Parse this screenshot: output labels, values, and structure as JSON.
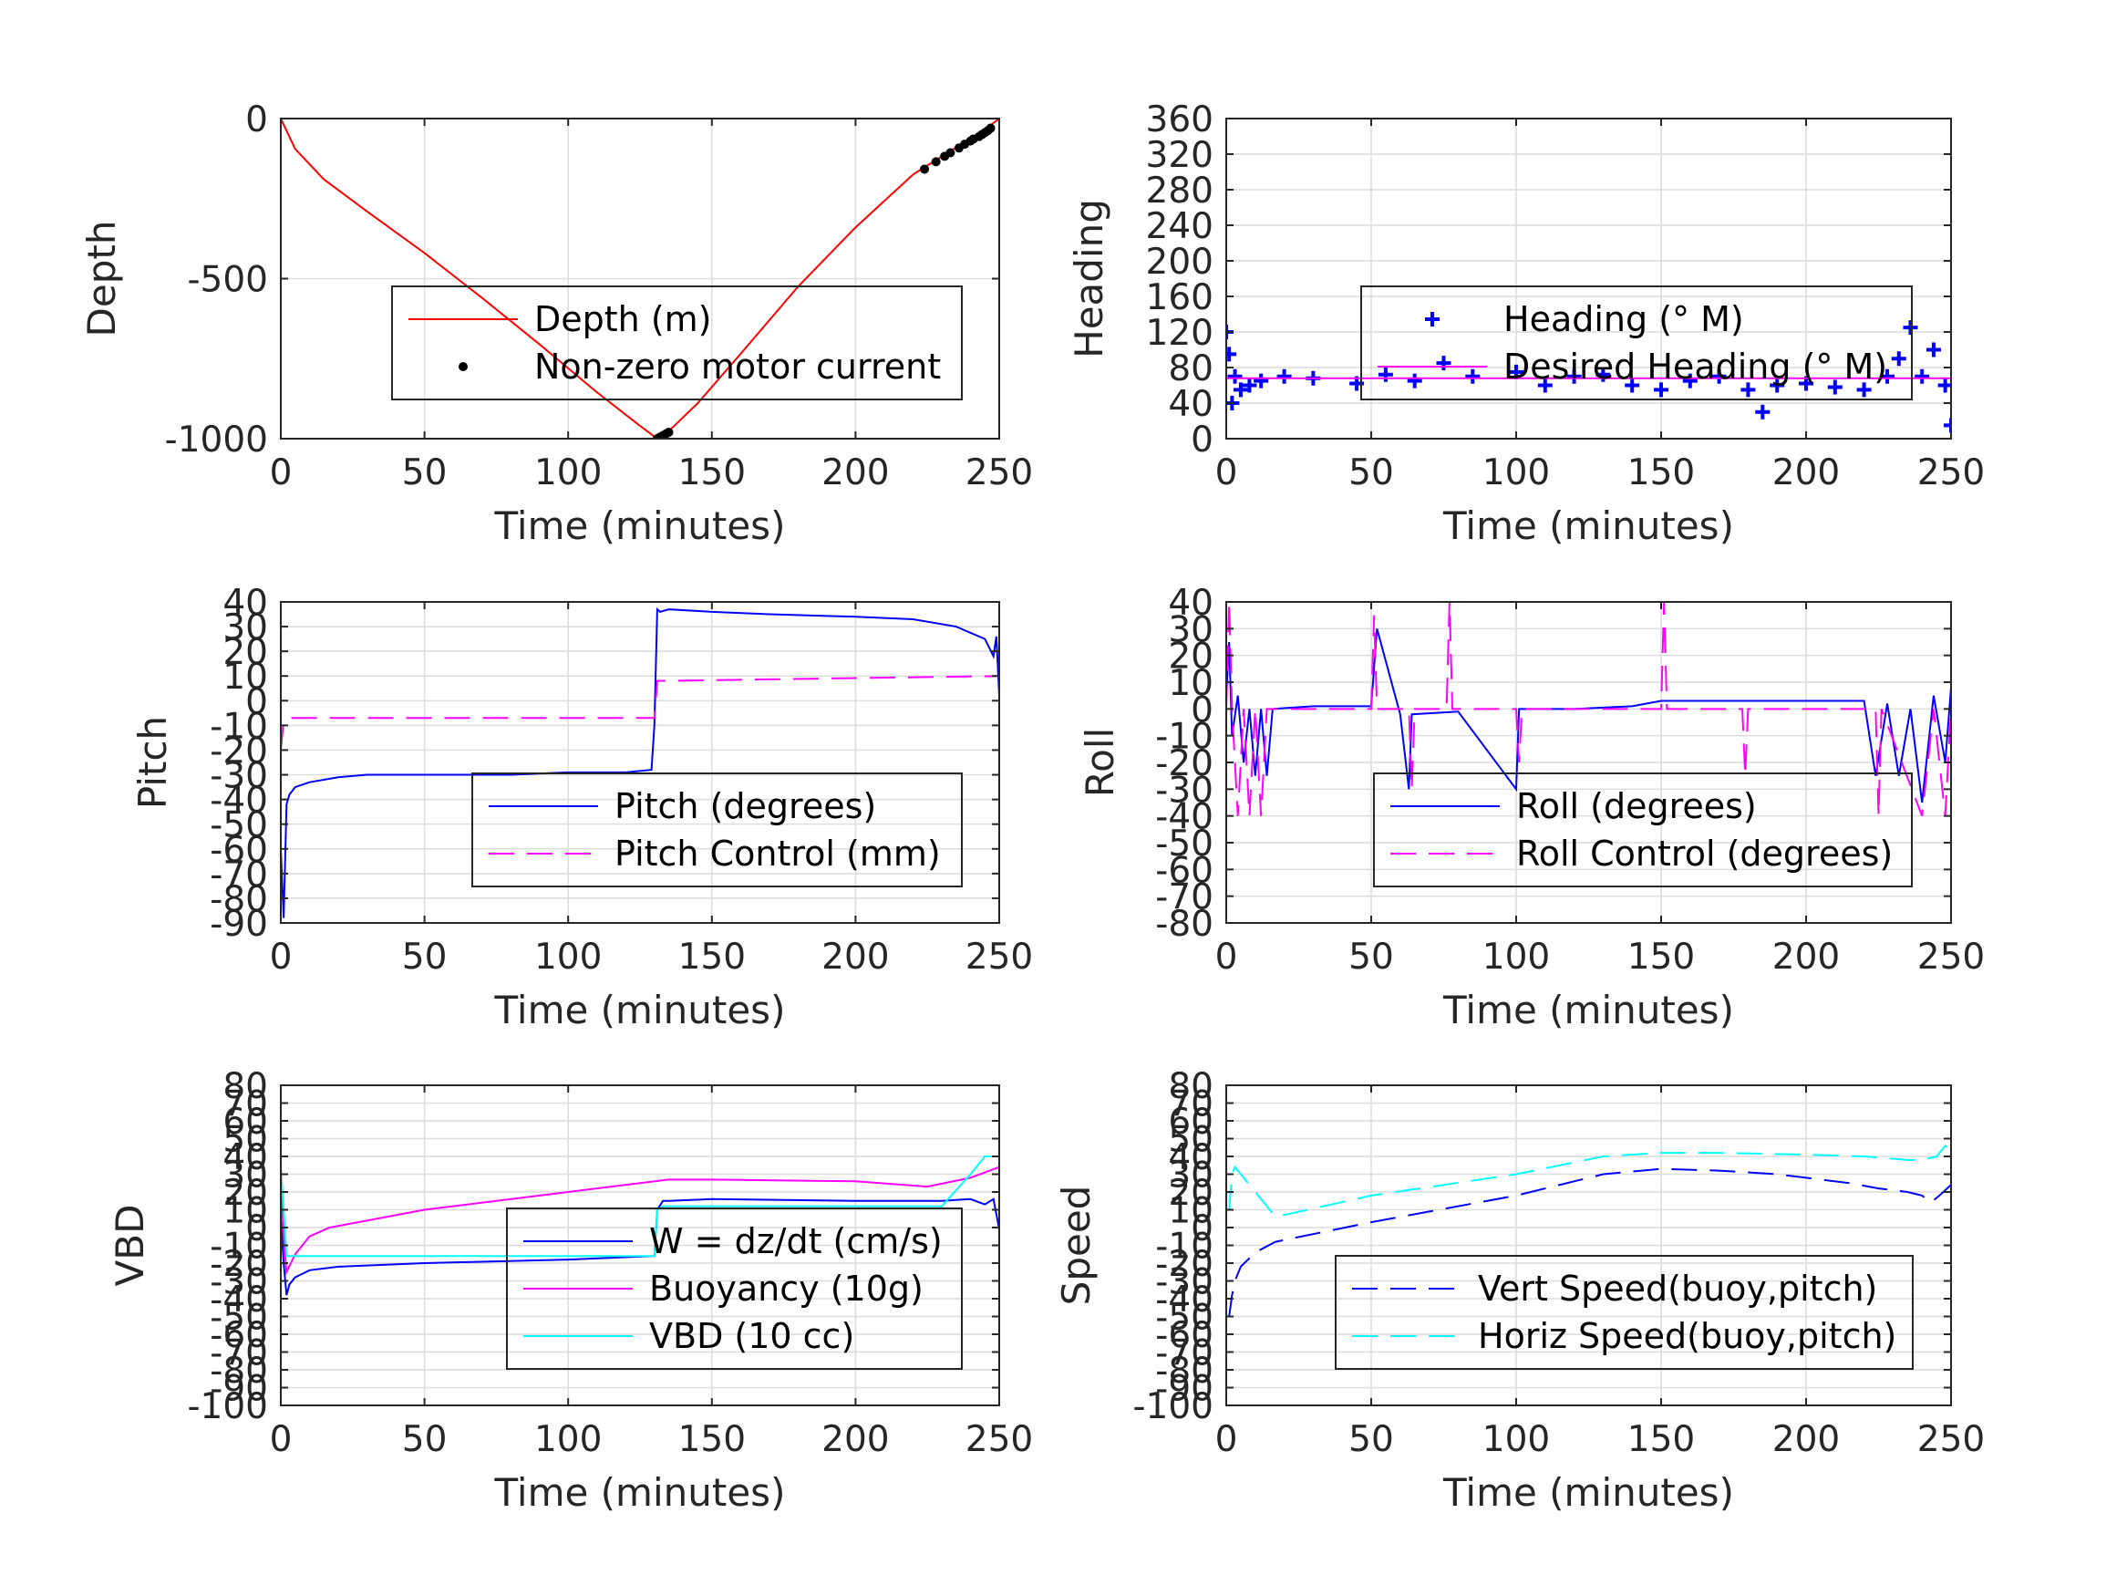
{
  "chart_data": [
    {
      "type": "line",
      "xlabel": "Time (minutes)",
      "ylabel": "Depth",
      "xlim": [
        0,
        250
      ],
      "ylim": [
        -1000,
        0
      ],
      "xticks": [
        0,
        50,
        100,
        150,
        200,
        250
      ],
      "yticks": [
        -1000,
        -500,
        0
      ],
      "grid": true,
      "legend_position": "lower-right",
      "series": [
        {
          "name": "Depth (m)",
          "color": "#ff0000",
          "style": "solid",
          "x": [
            0,
            5,
            15,
            30,
            50,
            70,
            90,
            110,
            125,
            131,
            134,
            145,
            160,
            180,
            200,
            220,
            235,
            245,
            250
          ],
          "y": [
            0,
            -95,
            -190,
            -290,
            -420,
            -560,
            -705,
            -855,
            -960,
            -1000,
            -985,
            -890,
            -735,
            -525,
            -340,
            -175,
            -90,
            -35,
            0
          ]
        },
        {
          "name": "Non-zero motor current",
          "color": "#000000",
          "style": "markers-dot",
          "x": [
            131,
            132,
            133,
            134,
            135,
            224,
            228,
            231,
            233,
            236,
            238,
            240,
            241,
            243,
            244,
            245,
            246,
            247
          ],
          "y": [
            -1000,
            -995,
            -990,
            -985,
            -980,
            -158,
            -135,
            -118,
            -107,
            -92,
            -80,
            -70,
            -64,
            -56,
            -50,
            -44,
            -38,
            -30
          ]
        }
      ]
    },
    {
      "type": "scatter",
      "xlabel": "Time (minutes)",
      "ylabel": "Heading",
      "xlim": [
        0,
        250
      ],
      "ylim": [
        0,
        360
      ],
      "xticks": [
        0,
        50,
        100,
        150,
        200,
        250
      ],
      "yticks": [
        0,
        40,
        80,
        120,
        160,
        200,
        240,
        280,
        320,
        360
      ],
      "grid": true,
      "legend_position": "center-right",
      "series": [
        {
          "name": "Heading (° M)",
          "color": "#0000ff",
          "style": "markers-plus",
          "x": [
            0,
            1,
            2,
            3,
            5,
            8,
            12,
            20,
            30,
            45,
            55,
            65,
            75,
            85,
            100,
            110,
            120,
            130,
            140,
            150,
            160,
            170,
            180,
            185,
            190,
            200,
            210,
            220,
            228,
            232,
            236,
            240,
            244,
            248,
            250
          ],
          "y": [
            120,
            95,
            40,
            70,
            55,
            60,
            65,
            70,
            68,
            62,
            72,
            65,
            85,
            70,
            75,
            60,
            70,
            72,
            60,
            55,
            65,
            70,
            55,
            30,
            60,
            62,
            58,
            55,
            70,
            90,
            125,
            70,
            100,
            60,
            15
          ]
        },
        {
          "name": "Desired Heading (° M)",
          "color": "#ff00ff",
          "style": "solid",
          "x": [
            0,
            250
          ],
          "y": [
            68,
            68
          ]
        }
      ]
    },
    {
      "type": "line",
      "xlabel": "Time (minutes)",
      "ylabel": "Pitch",
      "xlim": [
        0,
        250
      ],
      "ylim": [
        -90,
        40
      ],
      "xticks": [
        0,
        50,
        100,
        150,
        200,
        250
      ],
      "yticks": [
        -90,
        -80,
        -70,
        -60,
        -50,
        -40,
        -30,
        -20,
        -10,
        0,
        10,
        20,
        30,
        40
      ],
      "grid": true,
      "legend_position": "lower-right",
      "series": [
        {
          "name": "Pitch (degrees)",
          "color": "#0000ff",
          "style": "solid",
          "x": [
            0,
            1,
            2,
            3,
            5,
            10,
            20,
            30,
            50,
            80,
            100,
            120,
            129,
            130,
            131,
            132,
            135,
            150,
            170,
            200,
            220,
            235,
            245,
            248,
            249,
            250
          ],
          "y": [
            -60,
            -88,
            -42,
            -38,
            -35,
            -33,
            -31,
            -30,
            -30,
            -30,
            -29,
            -29,
            -28,
            -10,
            37,
            36,
            37,
            36,
            35,
            34,
            33,
            30,
            25,
            18,
            26,
            2
          ]
        },
        {
          "name": "Pitch Control (mm)",
          "color": "#ff00ff",
          "style": "dashed",
          "x": [
            0,
            1,
            2,
            3,
            130,
            131,
            132,
            250
          ],
          "y": [
            -20,
            -8,
            -7,
            -7,
            -7,
            8,
            8,
            10
          ]
        }
      ]
    },
    {
      "type": "line",
      "xlabel": "Time (minutes)",
      "ylabel": "Roll",
      "xlim": [
        0,
        250
      ],
      "ylim": [
        -80,
        40
      ],
      "xticks": [
        0,
        50,
        100,
        150,
        200,
        250
      ],
      "yticks": [
        -80,
        -70,
        -60,
        -50,
        -40,
        -30,
        -20,
        -10,
        0,
        10,
        20,
        30,
        40
      ],
      "grid": true,
      "legend_position": "lower-right",
      "series": [
        {
          "name": "Roll (degrees)",
          "color": "#0000ff",
          "style": "solid",
          "x": [
            0,
            1,
            2,
            4,
            6,
            8,
            10,
            12,
            14,
            16,
            30,
            50,
            52,
            60,
            63,
            64,
            80,
            100,
            101,
            120,
            140,
            150,
            160,
            180,
            200,
            220,
            224,
            228,
            232,
            236,
            240,
            244,
            248,
            250
          ],
          "y": [
            5,
            25,
            -10,
            5,
            -20,
            0,
            -25,
            0,
            -25,
            0,
            1,
            1,
            30,
            -2,
            -30,
            -2,
            -1,
            -30,
            0,
            0,
            1,
            3,
            3,
            3,
            3,
            3,
            -25,
            2,
            -25,
            0,
            -35,
            5,
            -20,
            8
          ]
        },
        {
          "name": "Roll Control (degrees)",
          "color": "#ff00ff",
          "style": "dashed",
          "x": [
            0,
            1,
            2,
            4,
            6,
            8,
            10,
            12,
            14,
            16,
            50,
            51,
            52,
            63,
            64,
            65,
            76,
            77,
            78,
            100,
            101,
            102,
            150,
            151,
            152,
            178,
            179,
            180,
            224,
            225,
            226,
            240,
            244,
            248,
            250
          ],
          "y": [
            0,
            40,
            0,
            -40,
            0,
            -40,
            0,
            -40,
            0,
            0,
            0,
            35,
            0,
            0,
            -30,
            0,
            0,
            40,
            0,
            0,
            -20,
            0,
            0,
            40,
            0,
            0,
            -25,
            0,
            0,
            -40,
            0,
            -40,
            0,
            -40,
            0
          ]
        }
      ]
    },
    {
      "type": "line",
      "xlabel": "Time (minutes)",
      "ylabel": "VBD",
      "xlim": [
        0,
        250
      ],
      "ylim": [
        -100,
        80
      ],
      "xticks": [
        0,
        50,
        100,
        150,
        200,
        250
      ],
      "yticks": [
        -100,
        -90,
        -80,
        -70,
        -60,
        -50,
        -40,
        -30,
        -20,
        -10,
        0,
        10,
        20,
        30,
        40,
        50,
        60,
        70,
        80
      ],
      "grid": true,
      "legend_position": "center-right",
      "series": [
        {
          "name": "W = dz/dt (cm/s)",
          "color": "#0000ff",
          "style": "solid",
          "x": [
            0,
            1,
            2,
            3,
            5,
            10,
            20,
            50,
            100,
            130,
            131,
            133,
            135,
            150,
            200,
            230,
            240,
            245,
            248,
            250
          ],
          "y": [
            5,
            -20,
            -38,
            -32,
            -28,
            -24,
            -22,
            -20,
            -18,
            -16,
            10,
            15,
            15,
            16,
            15,
            15,
            16,
            13,
            16,
            -1
          ]
        },
        {
          "name": "Buoyancy (10g)",
          "color": "#ff00ff",
          "style": "solid",
          "x": [
            0,
            1,
            2,
            5,
            10,
            17,
            50,
            100,
            135,
            150,
            200,
            225,
            240,
            250
          ],
          "y": [
            25,
            -5,
            -25,
            -15,
            -5,
            0,
            10,
            20,
            27,
            27,
            26,
            23,
            28,
            34
          ]
        },
        {
          "name": "VBD (10 cc)",
          "color": "#00ffff",
          "style": "solid",
          "x": [
            0,
            1,
            2,
            3,
            5,
            50,
            130,
            131,
            133,
            135,
            200,
            230,
            240,
            245,
            250
          ],
          "y": [
            35,
            10,
            -16,
            -16,
            -16,
            -16,
            -16,
            10,
            12,
            12,
            12,
            12,
            30,
            40,
            40
          ]
        }
      ]
    },
    {
      "type": "line",
      "xlabel": "Time (minutes)",
      "ylabel": "Speed",
      "xlim": [
        0,
        250
      ],
      "ylim": [
        -100,
        80
      ],
      "xticks": [
        0,
        50,
        100,
        150,
        200,
        250
      ],
      "yticks": [
        -100,
        -90,
        -80,
        -70,
        -60,
        -50,
        -40,
        -30,
        -20,
        -10,
        0,
        10,
        20,
        30,
        40,
        50,
        60,
        70,
        80
      ],
      "grid": true,
      "legend_position": "lower-right",
      "series": [
        {
          "name": "Vert Speed(buoy,pitch)",
          "color": "#0000ff",
          "style": "dashed",
          "x": [
            1,
            2,
            3,
            5,
            10,
            17,
            50,
            100,
            130,
            150,
            170,
            190,
            200,
            215,
            225,
            235,
            240,
            243,
            246,
            250
          ],
          "y": [
            -50,
            -38,
            -30,
            -22,
            -14,
            -8,
            3,
            18,
            30,
            33,
            32,
            30,
            28,
            25,
            22,
            20,
            18,
            14,
            18,
            24
          ]
        },
        {
          "name": "Horiz Speed(buoy,pitch)",
          "color": "#00ffff",
          "style": "dashed",
          "x": [
            1,
            2,
            3,
            5,
            10,
            17,
            50,
            100,
            130,
            150,
            170,
            200,
            220,
            235,
            240,
            245,
            248,
            250
          ],
          "y": [
            10,
            30,
            34,
            30,
            20,
            6,
            18,
            30,
            40,
            42,
            42,
            41,
            40,
            38,
            38,
            40,
            46,
            44
          ]
        }
      ]
    }
  ]
}
